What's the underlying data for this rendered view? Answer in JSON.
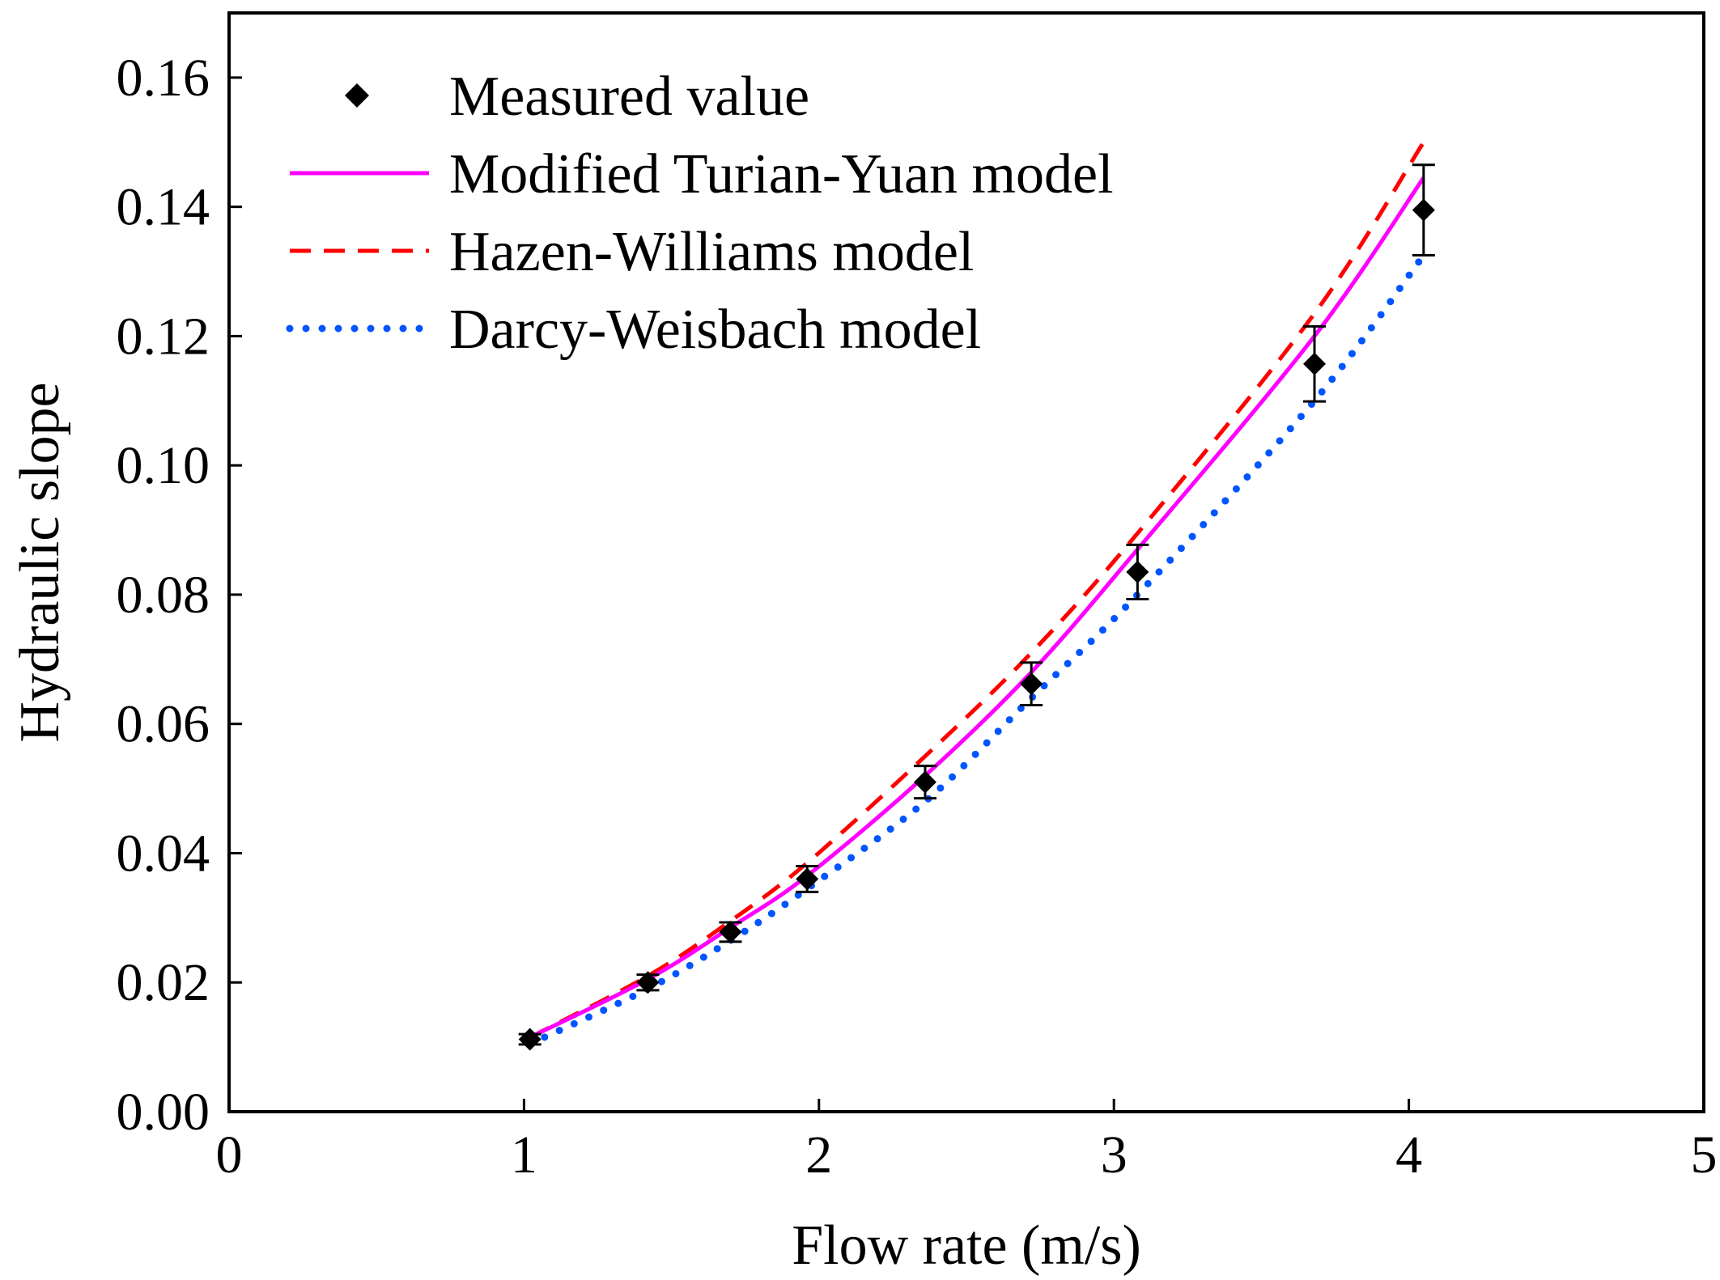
{
  "chart_data": {
    "type": "line",
    "title": "",
    "xlabel": "Flow rate (m/s)",
    "ylabel": "Hydraulic slope",
    "xlim": [
      0,
      5
    ],
    "ylim": [
      0,
      0.17
    ],
    "x_ticks": [
      0,
      1,
      2,
      3,
      4,
      5
    ],
    "x_tick_labels": [
      "0",
      "1",
      "2",
      "3",
      "4",
      "5"
    ],
    "y_ticks": [
      0,
      0.02,
      0.04,
      0.06,
      0.08,
      0.1,
      0.12,
      0.14,
      0.16
    ],
    "y_tick_labels": [
      "0.00",
      "0.02",
      "0.04",
      "0.06",
      "0.08",
      "0.10",
      "0.12",
      "0.14",
      "0.16"
    ],
    "grid": false,
    "legend_position": "top-left",
    "measured": {
      "name": "Measured value",
      "color": "#000000",
      "marker": "diamond",
      "x": [
        1.02,
        1.42,
        1.7,
        1.96,
        2.36,
        2.72,
        3.08,
        3.68,
        4.05
      ],
      "y": [
        0.0112,
        0.02,
        0.0278,
        0.036,
        0.051,
        0.0662,
        0.0835,
        0.1157,
        0.1395
      ],
      "err": [
        0.0008,
        0.0012,
        0.0015,
        0.002,
        0.0025,
        0.0033,
        0.0042,
        0.0058,
        0.007
      ]
    },
    "series": [
      {
        "name": "Modified Turian-Yuan model",
        "color": "#ff00ff",
        "style": "solid",
        "x": [
          1.02,
          1.42,
          1.7,
          1.96,
          2.36,
          2.72,
          3.08,
          3.68,
          4.05
        ],
        "y": [
          0.0115,
          0.0205,
          0.0285,
          0.0365,
          0.052,
          0.068,
          0.087,
          0.12,
          0.1445
        ]
      },
      {
        "name": "Hazen-Williams model",
        "color": "#ff0000",
        "style": "dashed",
        "x": [
          1.02,
          1.42,
          1.7,
          1.96,
          2.36,
          2.72,
          3.08,
          3.68,
          4.05
        ],
        "y": [
          0.0115,
          0.021,
          0.0295,
          0.0385,
          0.055,
          0.071,
          0.0895,
          0.1235,
          0.15
        ]
      },
      {
        "name": "Darcy-Weisbach model",
        "color": "#0055ff",
        "style": "dotted",
        "x": [
          1.02,
          1.42,
          1.7,
          1.96,
          2.36,
          2.72,
          3.08,
          3.68,
          4.05
        ],
        "y": [
          0.0105,
          0.019,
          0.0265,
          0.0345,
          0.048,
          0.064,
          0.08,
          0.11,
          0.1325
        ]
      }
    ]
  }
}
